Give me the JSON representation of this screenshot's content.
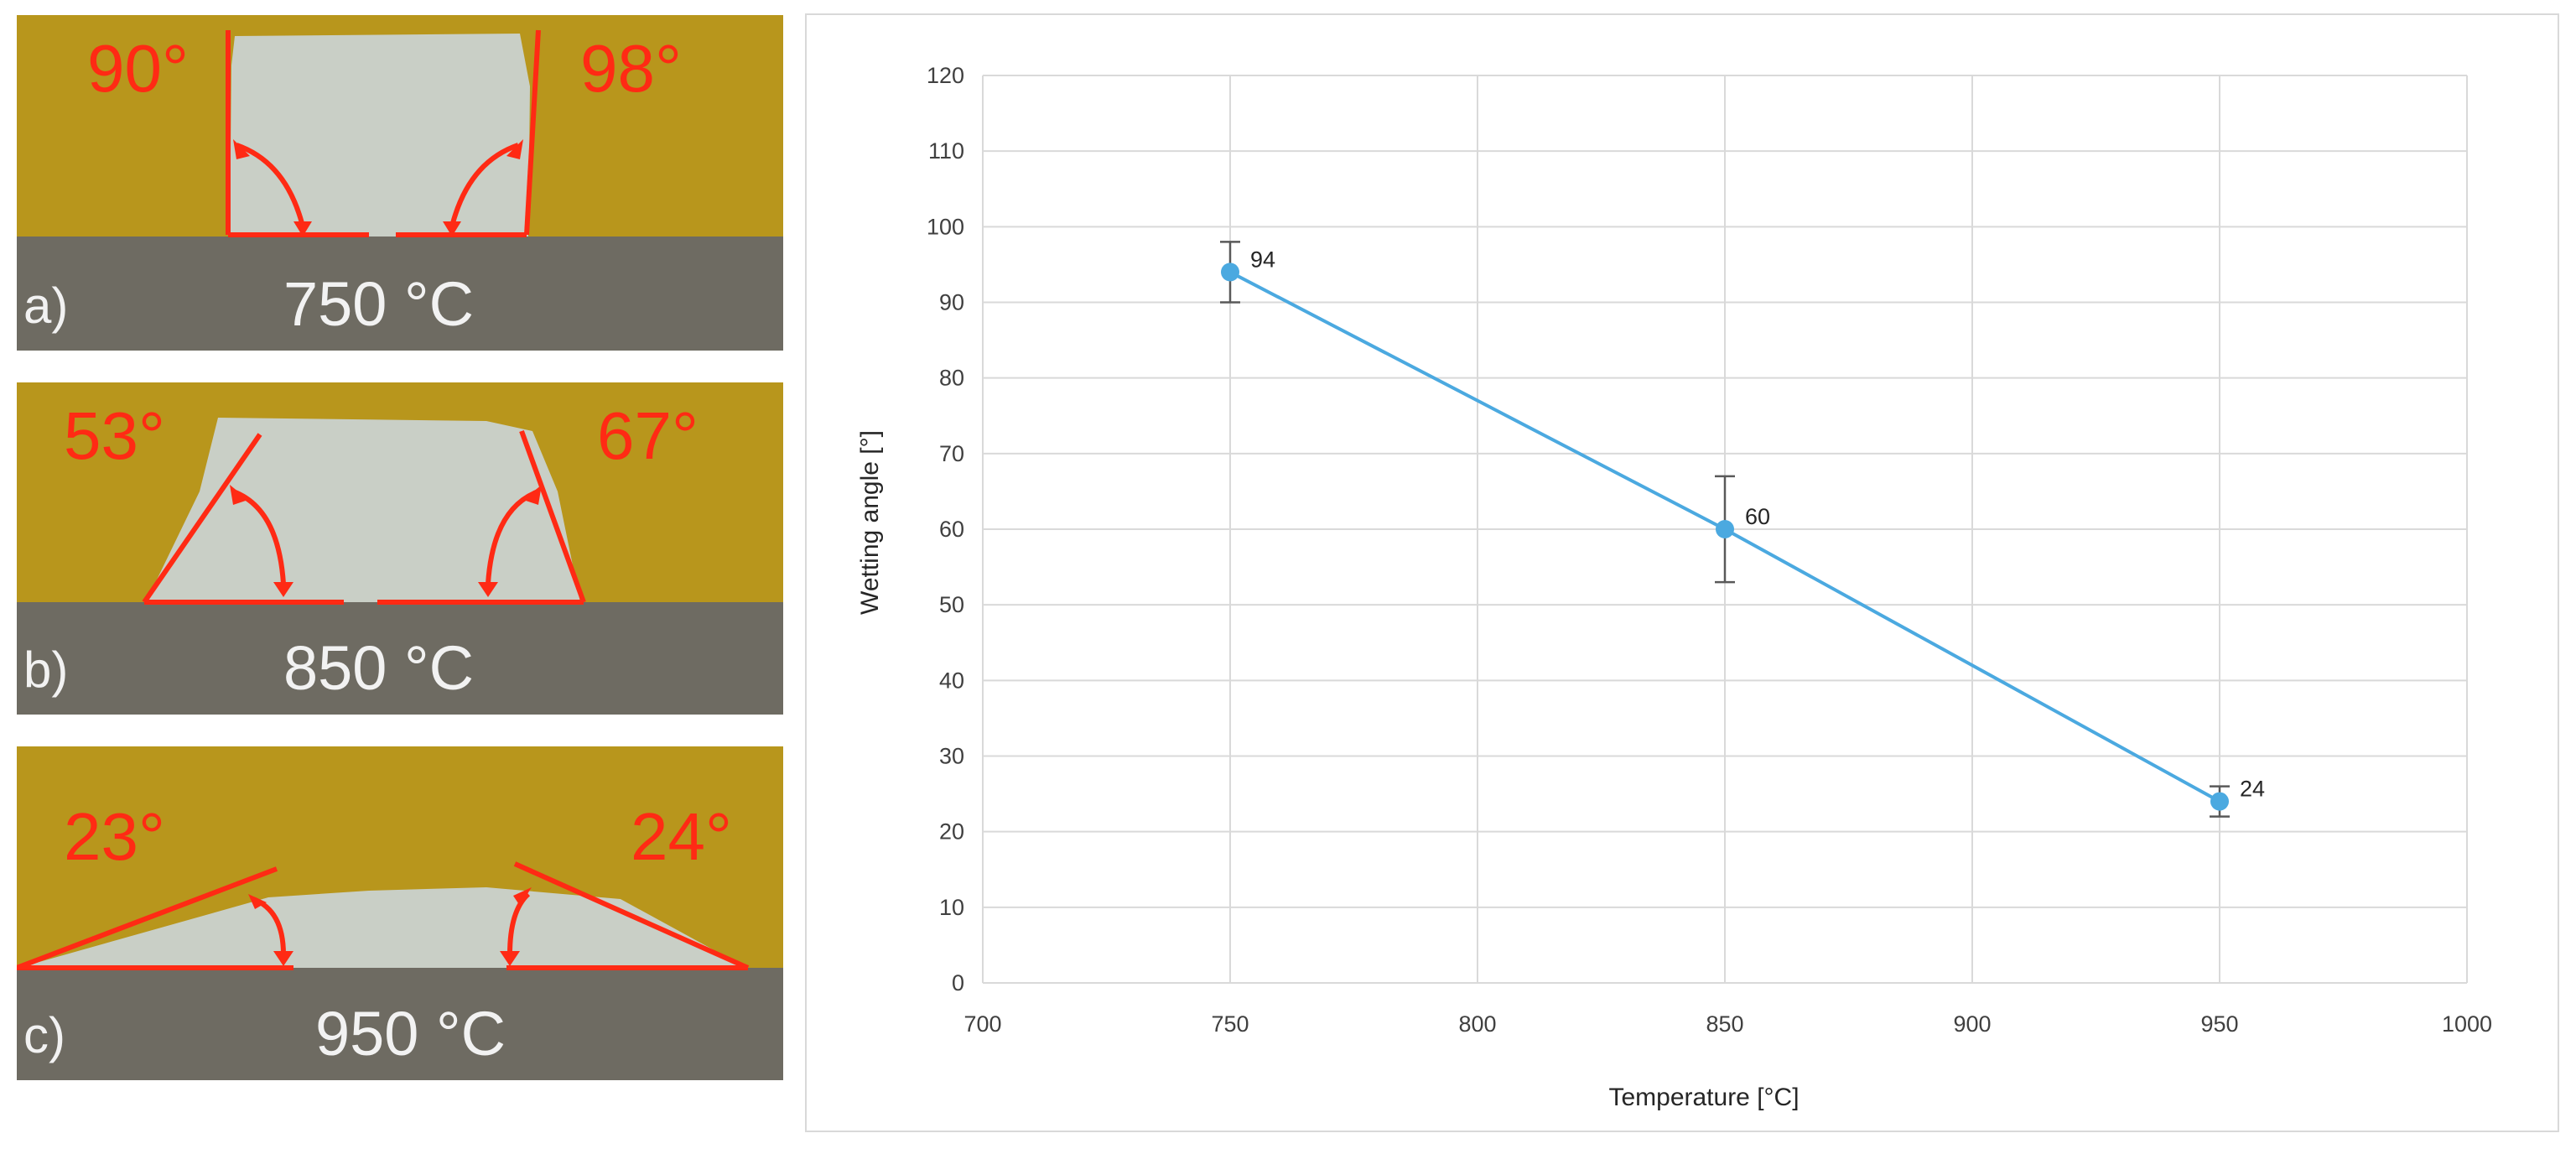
{
  "photos": [
    {
      "panel": "a)",
      "temperature": "750 °C",
      "left_angle": "90°",
      "right_angle": "98°"
    },
    {
      "panel": "b)",
      "temperature": "850 °C",
      "left_angle": "53°",
      "right_angle": "67°"
    },
    {
      "panel": "c)",
      "temperature": "950 °C",
      "left_angle": "23°",
      "right_angle": "24°"
    }
  ],
  "colors": {
    "background_wall": "#b8961c",
    "substrate": "#6e6b62",
    "sample": "#c9cfc6",
    "annotation": "#ff2a14",
    "series": "#4ba9e0",
    "grid": "#d9d9d9"
  },
  "chart_data": {
    "type": "line",
    "title": "",
    "xlabel": "Temperature [°C]",
    "ylabel": "Wetting angle [°]",
    "xlim": [
      700,
      1000
    ],
    "ylim": [
      0,
      120
    ],
    "x_ticks": [
      "700",
      "750",
      "800",
      "850",
      "900",
      "950",
      "1000"
    ],
    "y_ticks": [
      "0",
      "10",
      "20",
      "30",
      "40",
      "50",
      "60",
      "70",
      "80",
      "90",
      "100",
      "110",
      "120"
    ],
    "grid": true,
    "legend": "none",
    "series": [
      {
        "x": [
          750,
          850,
          950
        ],
        "y": [
          94,
          60,
          24
        ],
        "error": [
          4,
          7,
          2
        ],
        "data_labels": [
          "94",
          "60",
          "24"
        ]
      }
    ]
  }
}
